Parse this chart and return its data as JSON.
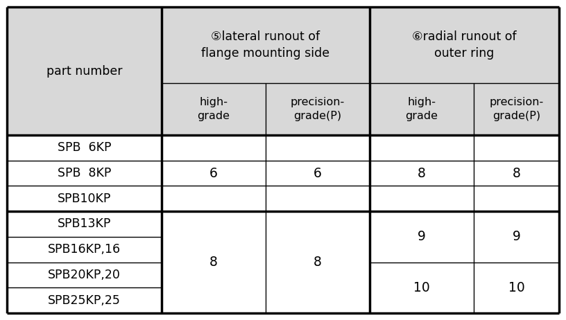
{
  "figsize": [
    8.16,
    4.62
  ],
  "dpi": 100,
  "bg_color": "#ffffff",
  "header_gray": "#d8d8d8",
  "border_color": "#000000",
  "thick_lw": 2.5,
  "thin_lw": 1.0,
  "part_numbers": [
    "SPB  6KP",
    "SPB  8KP",
    "SPB10KP",
    "SPB13KP",
    "SPB16KP,16",
    "SPB20KP,20",
    "SPB25KP,25"
  ],
  "col4_high_groups": [
    {
      "rows": [
        0,
        1,
        2
      ],
      "value": "6"
    },
    {
      "rows": [
        3,
        4,
        5,
        6
      ],
      "value": "8"
    }
  ],
  "col4_prec_groups": [
    {
      "rows": [
        0,
        1,
        2
      ],
      "value": "6"
    },
    {
      "rows": [
        3,
        4,
        5,
        6
      ],
      "value": "8"
    }
  ],
  "col5_high_groups": [
    {
      "rows": [
        0,
        1,
        2
      ],
      "value": "8"
    },
    {
      "rows": [
        3,
        4
      ],
      "value": "9"
    },
    {
      "rows": [
        5,
        6
      ],
      "value": "10"
    }
  ],
  "col5_prec_groups": [
    {
      "rows": [
        0,
        1,
        2
      ],
      "value": "8"
    },
    {
      "rows": [
        3,
        4
      ],
      "value": "9"
    },
    {
      "rows": [
        5,
        6
      ],
      "value": "10"
    }
  ],
  "header_line1_col4": "⑤lateral runout of",
  "header_line2_col4": "flange mounting side",
  "header_line1_col5": "⑥radial runout of",
  "header_line2_col5": "outer ring",
  "sub_high": "high-\ngrade",
  "sub_prec": "precision-\ngrade(P)",
  "part_label": "part number",
  "font_size_header_main": 12.5,
  "font_size_header_sub": 11.5,
  "font_size_part": 12.5,
  "font_size_value": 13.5
}
